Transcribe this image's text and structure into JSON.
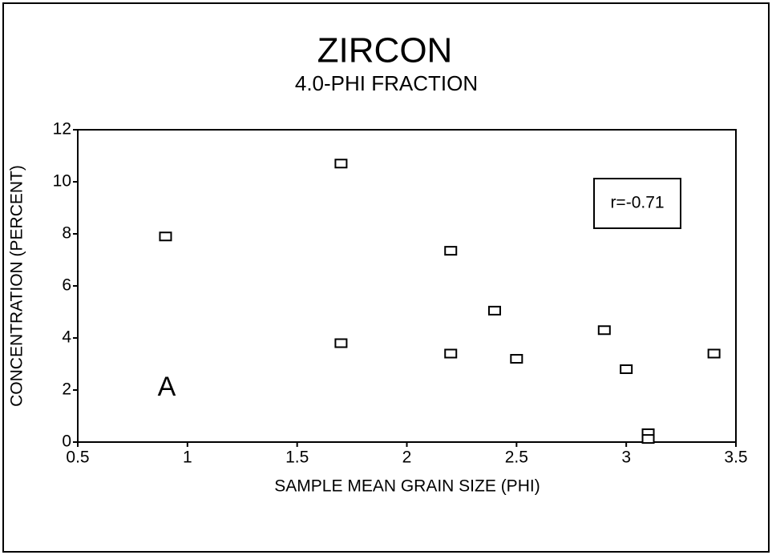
{
  "chart_data": {
    "type": "scatter",
    "title": "ZIRCON",
    "subtitle": "4.0-PHI FRACTION",
    "x_label": "SAMPLE MEAN GRAIN SIZE (PHI)",
    "y_label": "CONCENTRATION (PERCENT)",
    "annotations": [
      "r=-0.71",
      "A"
    ],
    "x": [
      0.9,
      1.7,
      1.7,
      2.2,
      2.2,
      2.4,
      2.5,
      2.9,
      3.0,
      3.1,
      3.1,
      3.4
    ],
    "values": [
      7.9,
      10.7,
      3.8,
      7.35,
      3.4,
      5.05,
      3.2,
      4.3,
      2.8,
      0.34,
      0.12,
      3.4
    ],
    "color": "#000000",
    "xlim": [
      0.5,
      3.5
    ],
    "xticks": [
      0.5,
      1,
      1.5,
      2,
      2.5,
      3,
      3.5
    ],
    "ylim": [
      0,
      12
    ],
    "yticks": [
      0,
      2,
      4,
      6,
      8,
      10,
      12
    ],
    "grid": false
  }
}
